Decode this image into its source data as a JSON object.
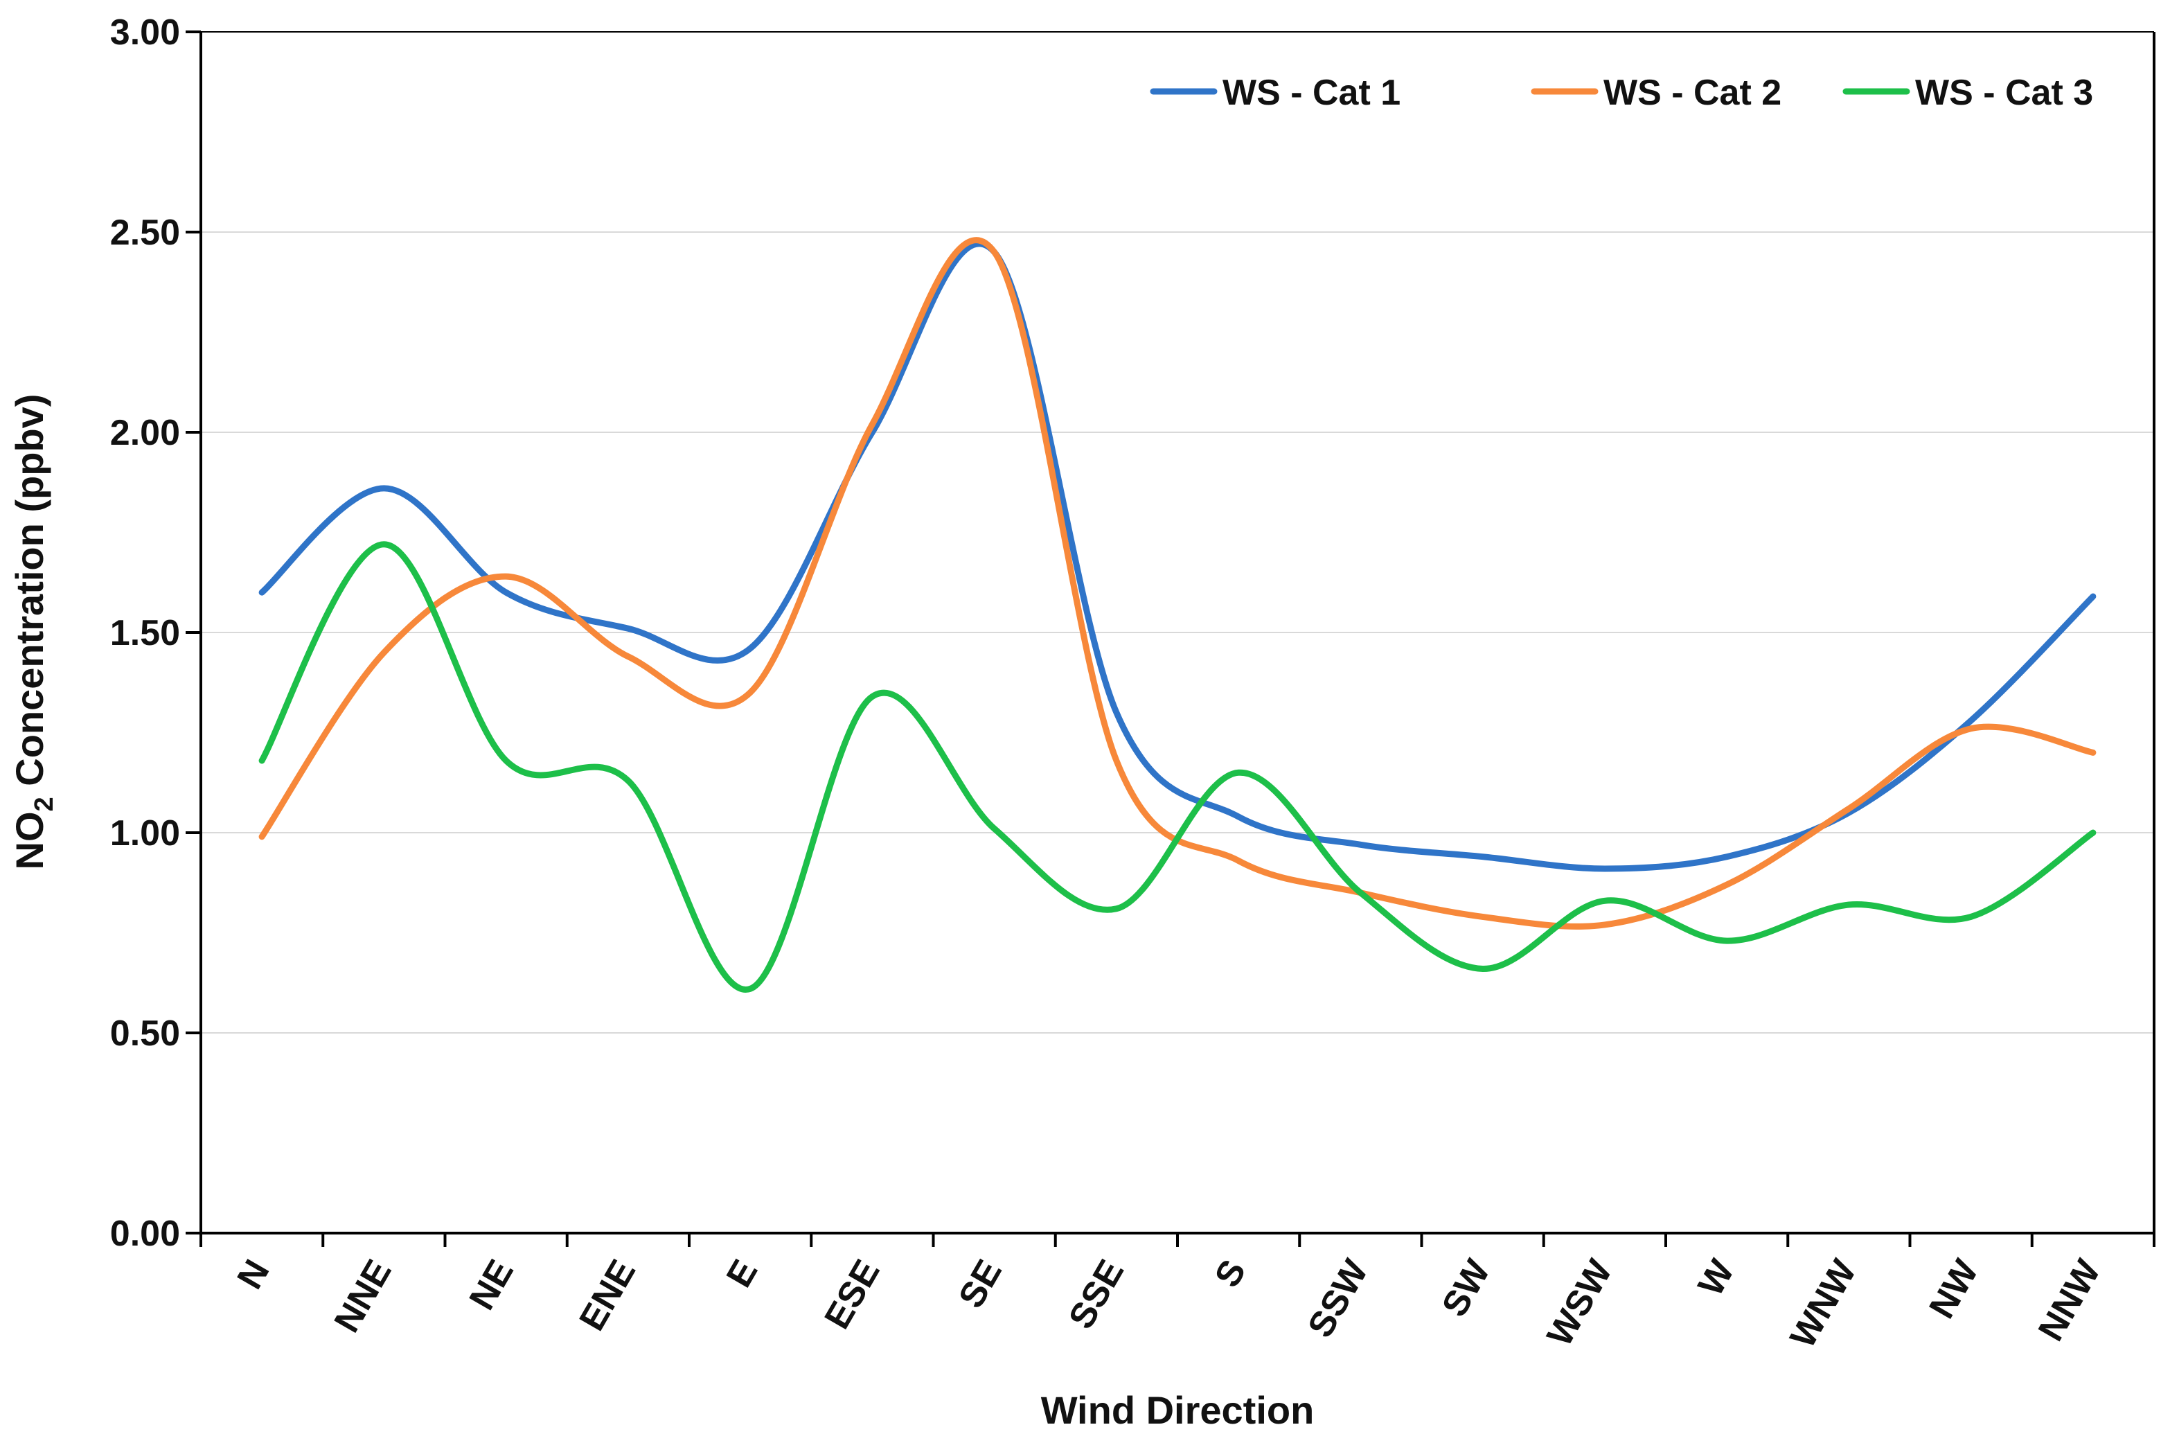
{
  "chart_data": {
    "type": "line",
    "title": "",
    "xlabel": "Wind Direction",
    "ylabel": {
      "prefix": "NO",
      "subscript": "2",
      "suffix": " Concentration (ppbv)"
    },
    "ylim": [
      0,
      3
    ],
    "yticks": [
      "0.00",
      "0.50",
      "1.00",
      "1.50",
      "2.00",
      "2.50",
      "3.00"
    ],
    "grid": true,
    "legend_position": "top-right",
    "categories": [
      "N",
      "NNE",
      "NE",
      "ENE",
      "E",
      "ESE",
      "SE",
      "SSE",
      "S",
      "SSW",
      "SW",
      "WSW",
      "W",
      "WNW",
      "NW",
      "NNW"
    ],
    "series": [
      {
        "name": "WS - Cat 1",
        "color": "#2F74C8",
        "values": [
          1.6,
          1.86,
          1.6,
          1.51,
          1.46,
          2.0,
          2.45,
          1.3,
          1.04,
          0.97,
          0.94,
          0.91,
          0.94,
          1.05,
          1.28,
          1.59
        ]
      },
      {
        "name": "WS - Cat 2",
        "color": "#F7883A",
        "values": [
          0.99,
          1.45,
          1.64,
          1.44,
          1.35,
          2.02,
          2.45,
          1.18,
          0.93,
          0.85,
          0.79,
          0.77,
          0.87,
          1.06,
          1.26,
          1.2
        ]
      },
      {
        "name": "WS - Cat 3",
        "color": "#1DBF49",
        "values": [
          1.18,
          1.72,
          1.18,
          1.13,
          0.61,
          1.34,
          1.01,
          0.81,
          1.15,
          0.85,
          0.66,
          0.83,
          0.73,
          0.82,
          0.79,
          1.0
        ]
      }
    ]
  }
}
